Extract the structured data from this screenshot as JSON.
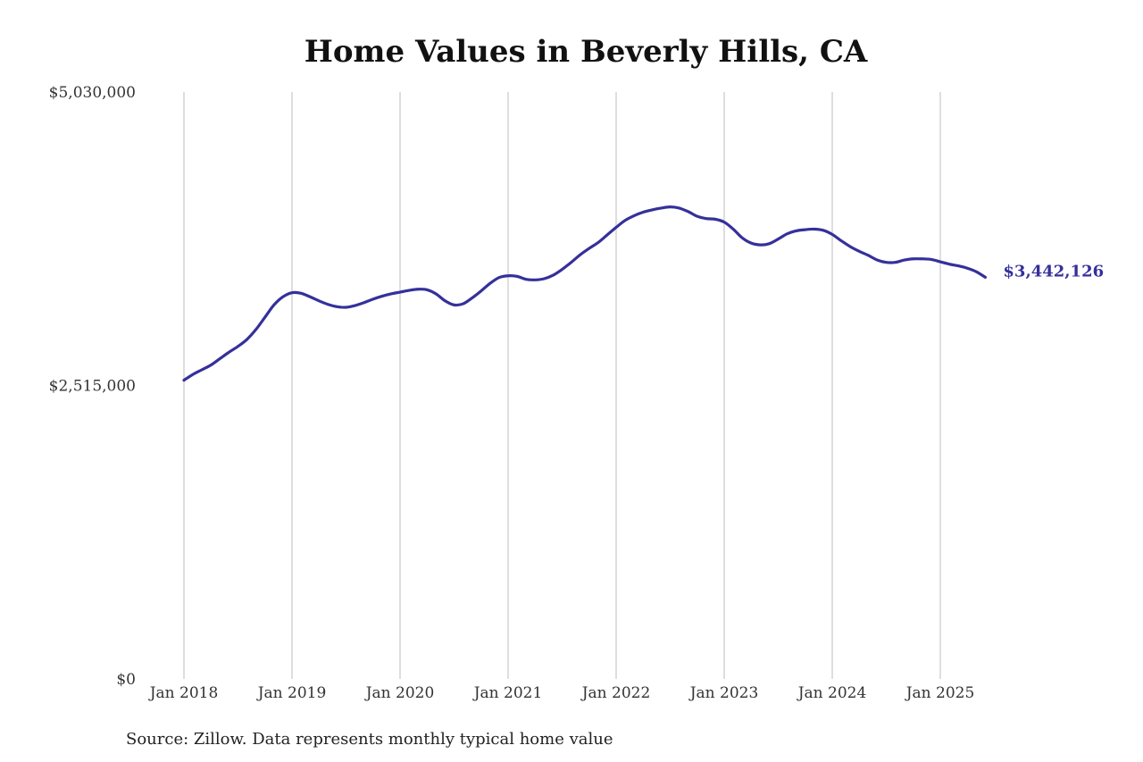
{
  "chart_data": {
    "type": "line",
    "title": "Home Values in Beverly Hills, CA",
    "x_tick_labels": [
      "Jan 2018",
      "Jan 2019",
      "Jan 2020",
      "Jan 2021",
      "Jan 2022",
      "Jan 2023",
      "Jan 2024",
      "Jan 2025"
    ],
    "y_tick_labels": [
      "$5,030,000",
      "$2,515,000",
      "$0"
    ],
    "ylim": [
      0,
      5030000
    ],
    "xlim": [
      "2018-01",
      "2025-06"
    ],
    "grid": {
      "vertical": true,
      "horizontal": false
    },
    "series": [
      {
        "color": "#35309a",
        "end_label": "$3,442,126",
        "points": [
          [
            "2018-01",
            2560000
          ],
          [
            "2018-02",
            2610000
          ],
          [
            "2018-03",
            2650000
          ],
          [
            "2018-04",
            2690000
          ],
          [
            "2018-05",
            2745000
          ],
          [
            "2018-06",
            2800000
          ],
          [
            "2018-07",
            2850000
          ],
          [
            "2018-08",
            2910000
          ],
          [
            "2018-09",
            2995000
          ],
          [
            "2018-10",
            3100000
          ],
          [
            "2018-11",
            3205000
          ],
          [
            "2018-12",
            3275000
          ],
          [
            "2019-01",
            3310000
          ],
          [
            "2019-02",
            3305000
          ],
          [
            "2019-03",
            3275000
          ],
          [
            "2019-04",
            3240000
          ],
          [
            "2019-05",
            3210000
          ],
          [
            "2019-06",
            3190000
          ],
          [
            "2019-07",
            3185000
          ],
          [
            "2019-08",
            3200000
          ],
          [
            "2019-09",
            3225000
          ],
          [
            "2019-10",
            3255000
          ],
          [
            "2019-11",
            3280000
          ],
          [
            "2019-12",
            3300000
          ],
          [
            "2020-01",
            3315000
          ],
          [
            "2020-02",
            3330000
          ],
          [
            "2020-03",
            3340000
          ],
          [
            "2020-04",
            3335000
          ],
          [
            "2020-05",
            3300000
          ],
          [
            "2020-06",
            3240000
          ],
          [
            "2020-07",
            3205000
          ],
          [
            "2020-08",
            3215000
          ],
          [
            "2020-09",
            3265000
          ],
          [
            "2020-10",
            3325000
          ],
          [
            "2020-11",
            3390000
          ],
          [
            "2020-12",
            3440000
          ],
          [
            "2021-01",
            3455000
          ],
          [
            "2021-02",
            3450000
          ],
          [
            "2021-03",
            3425000
          ],
          [
            "2021-04",
            3420000
          ],
          [
            "2021-05",
            3430000
          ],
          [
            "2021-06",
            3460000
          ],
          [
            "2021-07",
            3510000
          ],
          [
            "2021-08",
            3570000
          ],
          [
            "2021-09",
            3635000
          ],
          [
            "2021-10",
            3690000
          ],
          [
            "2021-11",
            3740000
          ],
          [
            "2021-12",
            3805000
          ],
          [
            "2022-01",
            3870000
          ],
          [
            "2022-02",
            3930000
          ],
          [
            "2022-03",
            3970000
          ],
          [
            "2022-04",
            4000000
          ],
          [
            "2022-05",
            4020000
          ],
          [
            "2022-06",
            4035000
          ],
          [
            "2022-07",
            4045000
          ],
          [
            "2022-08",
            4035000
          ],
          [
            "2022-09",
            4005000
          ],
          [
            "2022-10",
            3965000
          ],
          [
            "2022-11",
            3945000
          ],
          [
            "2022-12",
            3940000
          ],
          [
            "2023-01",
            3915000
          ],
          [
            "2023-02",
            3855000
          ],
          [
            "2023-03",
            3780000
          ],
          [
            "2023-04",
            3735000
          ],
          [
            "2023-05",
            3720000
          ],
          [
            "2023-06",
            3730000
          ],
          [
            "2023-07",
            3770000
          ],
          [
            "2023-08",
            3815000
          ],
          [
            "2023-09",
            3840000
          ],
          [
            "2023-10",
            3850000
          ],
          [
            "2023-11",
            3855000
          ],
          [
            "2023-12",
            3845000
          ],
          [
            "2024-01",
            3810000
          ],
          [
            "2024-02",
            3755000
          ],
          [
            "2024-03",
            3705000
          ],
          [
            "2024-04",
            3665000
          ],
          [
            "2024-05",
            3630000
          ],
          [
            "2024-06",
            3590000
          ],
          [
            "2024-07",
            3570000
          ],
          [
            "2024-08",
            3570000
          ],
          [
            "2024-09",
            3590000
          ],
          [
            "2024-10",
            3600000
          ],
          [
            "2024-11",
            3600000
          ],
          [
            "2024-12",
            3595000
          ],
          [
            "2025-01",
            3575000
          ],
          [
            "2025-02",
            3555000
          ],
          [
            "2025-03",
            3540000
          ],
          [
            "2025-04",
            3520000
          ],
          [
            "2025-05",
            3490000
          ],
          [
            "2025-06",
            3442126
          ]
        ]
      }
    ]
  },
  "source_note": "Source: Zillow. Data represents monthly typical home value"
}
